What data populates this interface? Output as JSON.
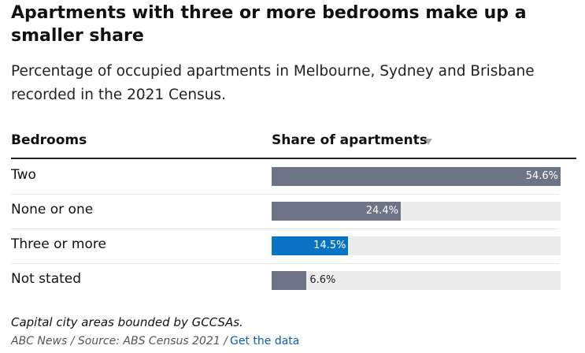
{
  "chart_data": {
    "type": "bar",
    "title": "Apartments with three or more bedrooms make up a smaller share",
    "subtitle": "Percentage of occupied apartments in Melbourne, Sydney and Brisbane recorded in the 2021 Census.",
    "columns": [
      "Bedrooms",
      "Share of apartments"
    ],
    "categories": [
      "Two",
      "None or one",
      "Three or more",
      "Not stated"
    ],
    "values": [
      54.6,
      24.4,
      14.5,
      6.6
    ],
    "value_labels": [
      "54.6%",
      "24.4%",
      "14.5%",
      "6.6%"
    ],
    "colors": [
      "#6c7485",
      "#6c7485",
      "#0a74c4",
      "#6c7485"
    ],
    "note": "Capital city areas bounded by GCCSAs.",
    "source": "ABC News / Source: ABS Census 2021 /",
    "link": "Get the data"
  }
}
